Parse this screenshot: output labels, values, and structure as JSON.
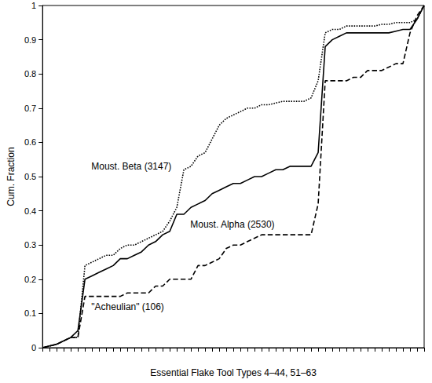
{
  "chart_data": {
    "type": "line",
    "x_label": "Essential Flake Tool Types 4–44, 51–63",
    "y_label": "Cum. Fraction",
    "x": [
      0,
      1,
      2,
      3,
      4,
      5,
      6,
      7,
      8,
      9,
      10,
      11,
      12,
      13,
      14,
      15,
      16,
      17,
      18,
      19,
      20,
      21,
      22,
      23,
      24,
      25,
      26,
      27,
      28,
      29,
      30,
      31,
      32,
      33,
      34,
      35,
      36,
      37,
      38,
      39,
      40,
      41,
      42,
      43,
      44,
      45,
      46,
      47,
      48,
      49,
      50,
      51,
      52,
      53,
      54
    ],
    "xlim": [
      0,
      54
    ],
    "xticks": [
      0,
      1,
      2,
      3,
      4,
      5,
      6,
      7,
      8,
      9,
      10,
      11,
      12,
      13,
      14,
      15,
      16,
      17,
      18,
      19,
      20,
      21,
      22,
      23,
      24,
      25,
      26,
      27,
      28,
      29,
      30,
      31,
      32,
      33,
      34,
      35,
      36,
      37,
      38,
      39,
      40,
      41,
      42,
      43,
      44,
      45,
      46,
      47,
      48,
      49,
      50,
      51,
      52,
      53,
      54
    ],
    "ylim": [
      0,
      1
    ],
    "yticks": [
      0,
      0.1,
      0.2,
      0.3,
      0.4,
      0.5,
      0.6,
      0.7,
      0.8,
      0.9,
      1
    ],
    "grid": false,
    "tick_labels": "y",
    "series": [
      {
        "name": "Moust. Beta (3147)",
        "color": "#000000",
        "line_style": "dotted",
        "label_x": 6.9,
        "label_y": 0.53,
        "values": [
          0,
          0.005,
          0.01,
          0.02,
          0.03,
          0.03,
          0.24,
          0.25,
          0.26,
          0.27,
          0.27,
          0.29,
          0.3,
          0.3,
          0.31,
          0.32,
          0.33,
          0.34,
          0.37,
          0.41,
          0.52,
          0.53,
          0.56,
          0.57,
          0.61,
          0.65,
          0.67,
          0.68,
          0.69,
          0.7,
          0.7,
          0.71,
          0.71,
          0.715,
          0.72,
          0.72,
          0.72,
          0.72,
          0.73,
          0.78,
          0.92,
          0.93,
          0.93,
          0.94,
          0.94,
          0.94,
          0.94,
          0.94,
          0.945,
          0.945,
          0.95,
          0.95,
          0.95,
          0.96,
          1
        ]
      },
      {
        "name": "Moust. Alpha (2530)",
        "color": "#000000",
        "line_style": "solid",
        "label_x": 20.9,
        "label_y": 0.36,
        "values": [
          0,
          0.005,
          0.01,
          0.02,
          0.03,
          0.05,
          0.2,
          0.21,
          0.22,
          0.23,
          0.24,
          0.26,
          0.26,
          0.27,
          0.28,
          0.3,
          0.31,
          0.33,
          0.34,
          0.39,
          0.39,
          0.41,
          0.42,
          0.43,
          0.45,
          0.46,
          0.47,
          0.48,
          0.48,
          0.49,
          0.5,
          0.5,
          0.51,
          0.52,
          0.52,
          0.53,
          0.53,
          0.53,
          0.53,
          0.57,
          0.88,
          0.9,
          0.91,
          0.92,
          0.92,
          0.92,
          0.92,
          0.92,
          0.92,
          0.92,
          0.925,
          0.93,
          0.93,
          0.96,
          1
        ]
      },
      {
        "name": "\"Acheulian\" (106)",
        "color": "#000000",
        "line_style": "dashed",
        "label_x": 6.9,
        "label_y": 0.12,
        "values": [
          0,
          0.005,
          0.01,
          0.02,
          0.03,
          0.03,
          0.15,
          0.15,
          0.15,
          0.15,
          0.15,
          0.15,
          0.16,
          0.16,
          0.16,
          0.16,
          0.18,
          0.18,
          0.2,
          0.2,
          0.2,
          0.2,
          0.24,
          0.24,
          0.25,
          0.26,
          0.29,
          0.3,
          0.3,
          0.31,
          0.32,
          0.33,
          0.33,
          0.33,
          0.33,
          0.33,
          0.33,
          0.33,
          0.33,
          0.42,
          0.78,
          0.78,
          0.78,
          0.78,
          0.79,
          0.79,
          0.81,
          0.81,
          0.81,
          0.82,
          0.83,
          0.83,
          0.92,
          0.97,
          1
        ]
      }
    ]
  }
}
